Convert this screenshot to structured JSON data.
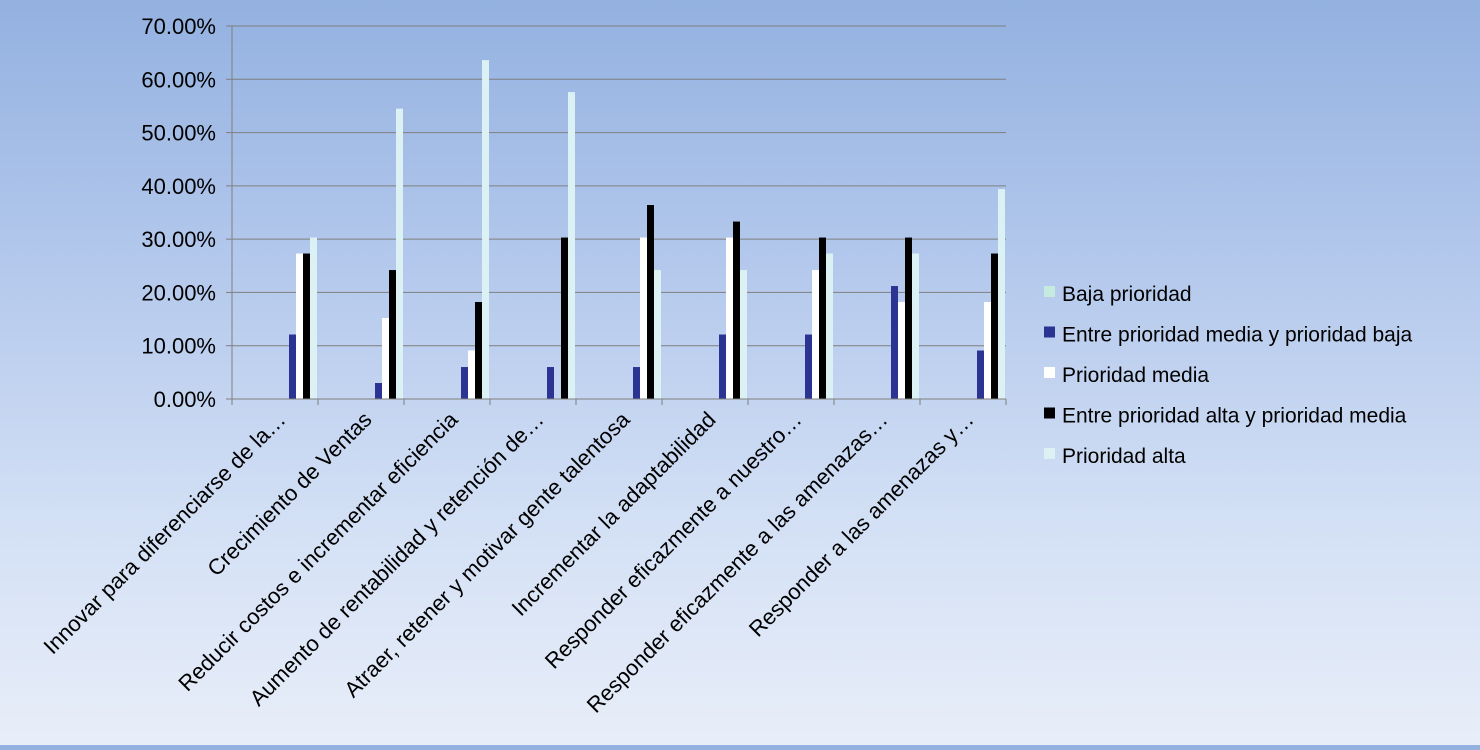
{
  "chart_data": {
    "type": "bar",
    "title": "",
    "xlabel": "",
    "ylabel": "",
    "ylim": [
      0,
      70
    ],
    "ytick_step": 10,
    "ytick_format": "percent_2dp",
    "grid": true,
    "legend_position": "right",
    "categories": [
      "Innovar para diferenciarse de la…",
      "Crecimiento de Ventas",
      "Reducir costos e incrementar eficiencia",
      "Aumento de rentabilidad y retención de…",
      "Atraer, retener y motivar gente talentosa",
      "Incrementar la adaptabilidad",
      "Responder eficazmente a  nuestro…",
      "Responder eficazmente a las amenazas…",
      "Responder  a las amenazas y…"
    ],
    "series": [
      {
        "name": "Baja prioridad",
        "color": "#c5eadf",
        "values": [
          0,
          0,
          0,
          0,
          0,
          0,
          0,
          0,
          0
        ]
      },
      {
        "name": "Entre prioridad media y prioridad baja",
        "color": "#2b3393",
        "values": [
          12.1,
          3.0,
          6.0,
          6.0,
          6.0,
          12.1,
          12.1,
          21.2,
          9.1
        ]
      },
      {
        "name": "Prioridad media",
        "color": "#ffffff",
        "values": [
          27.3,
          15.2,
          9.1,
          0,
          30.3,
          30.3,
          24.2,
          18.2,
          18.2
        ]
      },
      {
        "name": "Entre prioridad alta y prioridad media",
        "color": "#000000",
        "values": [
          27.3,
          24.2,
          18.2,
          30.3,
          36.4,
          33.3,
          30.3,
          30.3,
          27.3
        ]
      },
      {
        "name": "Prioridad alta",
        "color": "#dcf1f4",
        "values": [
          30.3,
          54.5,
          63.6,
          57.6,
          24.2,
          24.2,
          27.3,
          27.3,
          39.4
        ]
      }
    ]
  }
}
